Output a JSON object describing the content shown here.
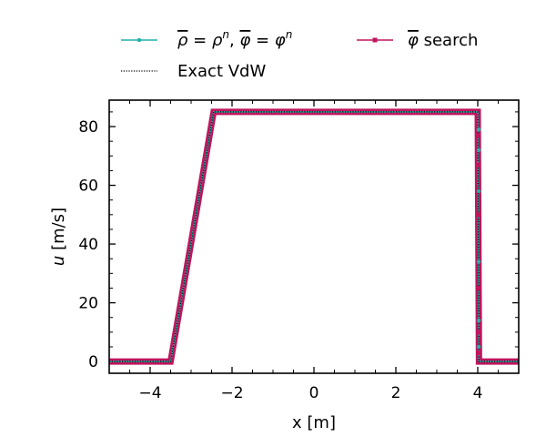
{
  "chart_data": {
    "type": "line",
    "title": "",
    "xlabel": "x [m]",
    "ylabel_var": "u",
    "ylabel_unit": " [m/s]",
    "xlim": [
      -5,
      5
    ],
    "ylim": [
      -4,
      89
    ],
    "xticks": [
      -4,
      -2,
      0,
      2,
      4
    ],
    "yticks": [
      0,
      20,
      40,
      60,
      80
    ],
    "xtick_labels": [
      "−4",
      "−2",
      "0",
      "2",
      "4"
    ],
    "ytick_labels": [
      "0",
      "20",
      "40",
      "60",
      "80"
    ],
    "legend_position": "top",
    "series": [
      {
        "name": "ρ̄ = ρⁿ, φ̄ = φⁿ",
        "legend_parts": [
          "ρ",
          " = ρ",
          "n",
          ",  ",
          "φ",
          " = φ",
          "n"
        ],
        "color": "#20b2aa",
        "marker": "circle",
        "x": [
          -5,
          -3.5,
          -2.45,
          4.0,
          4.0,
          4.03,
          5
        ],
        "y": [
          0,
          0,
          85,
          85,
          85,
          0,
          0
        ]
      },
      {
        "name": "Exact VdW",
        "color": "#000000",
        "style": "dotted",
        "x": [
          -5,
          -3.5,
          -2.45,
          4.0,
          4.03,
          5
        ],
        "y": [
          0,
          0,
          85,
          85,
          0,
          0
        ]
      },
      {
        "name": "φ̄ search",
        "legend_parts": [
          "φ",
          " search"
        ],
        "color": "#c0155d",
        "marker": "square",
        "x": [
          -5,
          -3.5,
          -2.45,
          4.0,
          4.03,
          5
        ],
        "y": [
          0,
          0,
          85,
          85,
          0,
          0
        ]
      }
    ],
    "shock_markers": {
      "x": 4.0,
      "teal_y": [
        79,
        72,
        58,
        34,
        14,
        5
      ],
      "pink_y": [
        77,
        67,
        50,
        25,
        10,
        3
      ]
    }
  }
}
